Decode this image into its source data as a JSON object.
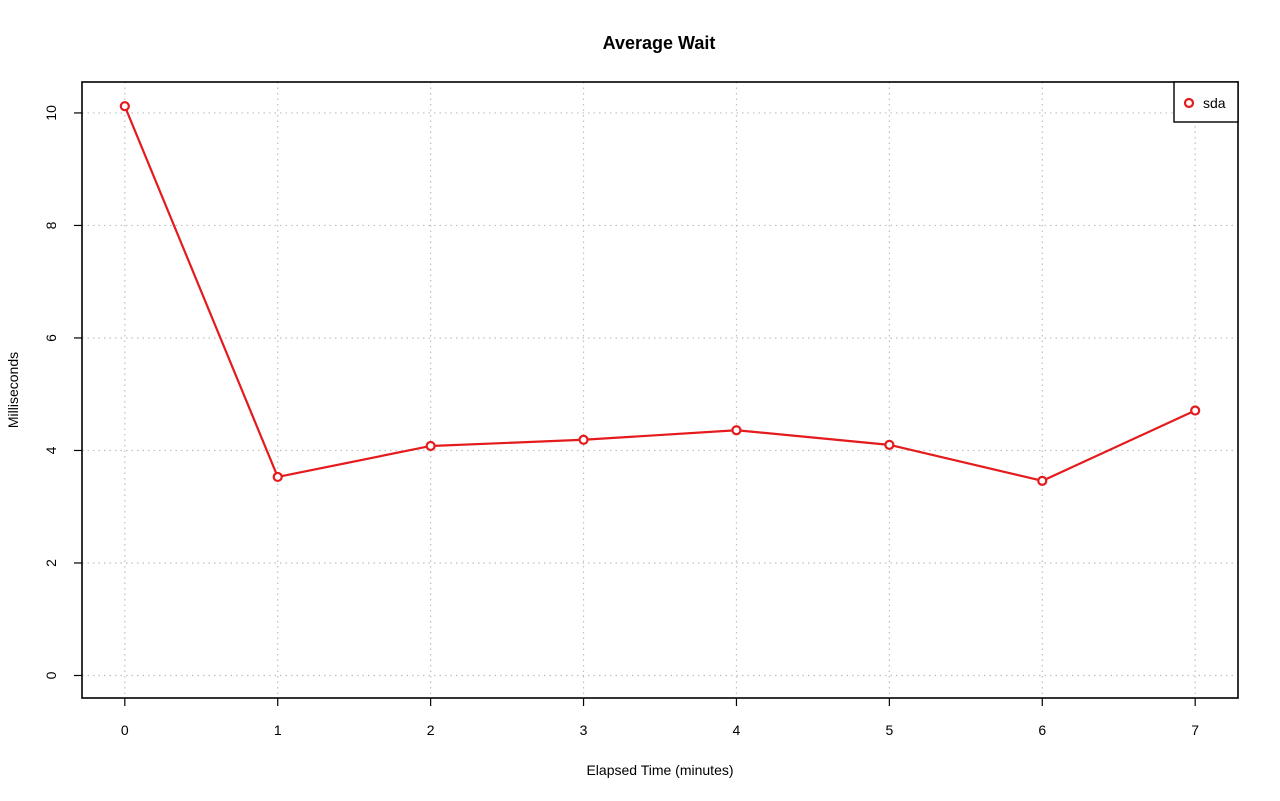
{
  "chart_data": {
    "type": "line",
    "title": "Average Wait",
    "xlabel": "Elapsed Time (minutes)",
    "ylabel": "Milliseconds",
    "x": [
      0,
      1,
      2,
      3,
      4,
      5,
      6,
      7
    ],
    "xticks": [
      "0",
      "1",
      "2",
      "3",
      "4",
      "5",
      "6",
      "7"
    ],
    "yticks": [
      "0",
      "2",
      "4",
      "6",
      "8",
      "10"
    ],
    "xlim": [
      -0.28,
      7.28
    ],
    "ylim": [
      -0.4,
      10.55
    ],
    "grid": true,
    "legend_position": "top-right",
    "series": [
      {
        "name": "sda",
        "color": "#e41a1c",
        "marker": "circle-open",
        "values": [
          10.12,
          3.53,
          4.08,
          4.19,
          4.36,
          4.1,
          3.46,
          4.71
        ]
      }
    ]
  }
}
